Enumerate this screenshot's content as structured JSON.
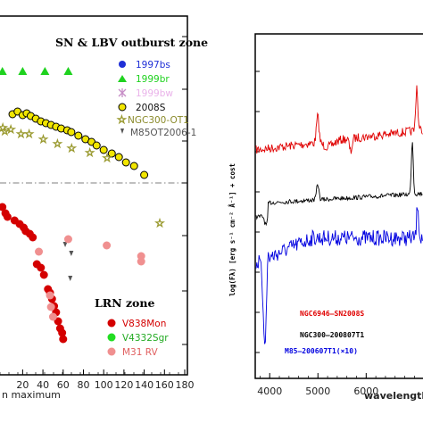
{
  "chart_data": [
    {
      "type": "scatter",
      "xlim": [
        -5,
        180
      ],
      "xticks": [
        20,
        40,
        60,
        80,
        100,
        120,
        140,
        160,
        180
      ],
      "xlabel": "n maximum",
      "grid": false,
      "zones": {
        "upper": "SN & LBV outburst zone",
        "lower": "LRN zone"
      },
      "legend_upper": [
        {
          "name": "1997bs",
          "color": "#1f2fd6",
          "marker": "circle"
        },
        {
          "name": "1999br",
          "color": "#1fd21f",
          "marker": "triangle"
        },
        {
          "name": "1999bw",
          "color": "#e9a8e8",
          "marker": "cross"
        },
        {
          "name": "2008S",
          "color": "#000000",
          "marker": "circle-yellow"
        },
        {
          "name": "NGC300-OT1",
          "color": "#8a8a2a",
          "marker": "star"
        },
        {
          "name": "M85OT2006-1",
          "color": "#555555",
          "marker": "arrow"
        }
      ],
      "legend_lower": [
        {
          "name": "V838Mon",
          "color": "#d40000",
          "marker": "circle"
        },
        {
          "name": "V4332Sgr",
          "color": "#22dd22",
          "marker": "circle"
        },
        {
          "name": "M31 RV",
          "color": "#f09090",
          "marker": "circle"
        }
      ],
      "series": [
        {
          "name": "1999br",
          "marker": "triangle",
          "color": "#1fd21f",
          "points": [
            [
              0,
              80
            ],
            [
              20,
              80
            ],
            [
              42,
              80
            ],
            [
              65,
              80
            ]
          ]
        },
        {
          "name": "2008S",
          "marker": "circle-yellow",
          "color": "#f2e600",
          "points": [
            [
              10,
              128
            ],
            [
              15,
              125
            ],
            [
              20,
              129
            ],
            [
              24,
              127
            ],
            [
              28,
              130
            ],
            [
              33,
              133
            ],
            [
              38,
              136
            ],
            [
              43,
              138
            ],
            [
              48,
              140
            ],
            [
              53,
              142
            ],
            [
              58,
              144
            ],
            [
              64,
              146
            ],
            [
              68,
              148
            ],
            [
              75,
              152
            ],
            [
              82,
              156
            ],
            [
              88,
              159
            ],
            [
              93,
              163
            ],
            [
              100,
              168
            ],
            [
              108,
              172
            ],
            [
              115,
              176
            ],
            [
              122,
              182
            ],
            [
              130,
              186
            ],
            [
              140,
              196
            ]
          ]
        },
        {
          "name": "NGC300-OT1",
          "marker": "star",
          "color": "#9a9a30",
          "points": [
            [
              0,
              143
            ],
            [
              2,
              147
            ],
            [
              8,
              145
            ],
            [
              18,
              150
            ],
            [
              26,
              150
            ],
            [
              40,
              156
            ],
            [
              54,
              161
            ],
            [
              68,
              166
            ],
            [
              86,
              171
            ],
            [
              103,
              177
            ],
            [
              155,
              250
            ]
          ]
        },
        {
          "name": "M85OT2006-1",
          "marker": "arrow",
          "color": "#555555",
          "points": [
            [
              62,
              274
            ],
            [
              68,
              284
            ],
            [
              67,
              312
            ]
          ]
        },
        {
          "name": "V838Mon",
          "marker": "circle",
          "color": "#d40000",
          "points": [
            [
              0,
              232
            ],
            [
              3,
              239
            ],
            [
              5,
              243
            ],
            [
              12,
              247
            ],
            [
              17,
              251
            ],
            [
              21,
              255
            ],
            [
              23,
              259
            ],
            [
              27,
              262
            ],
            [
              30,
              266
            ],
            [
              34,
              296
            ],
            [
              38,
              300
            ],
            [
              41,
              308
            ],
            [
              45,
              324
            ],
            [
              47,
              328
            ],
            [
              49,
              335
            ],
            [
              51,
              343
            ],
            [
              53,
              350
            ],
            [
              55,
              360
            ],
            [
              57,
              368
            ],
            [
              59,
              373
            ],
            [
              60,
              380
            ]
          ]
        },
        {
          "name": "M31 RV",
          "marker": "circle",
          "color": "#f09090",
          "points": [
            [
              36,
              282
            ],
            [
              47,
              331
            ],
            [
              48,
              344
            ],
            [
              50,
              355
            ],
            [
              65,
              268
            ],
            [
              103,
              275
            ],
            [
              137,
              287
            ],
            [
              137,
              293
            ]
          ]
        }
      ]
    },
    {
      "type": "line",
      "xlim": [
        3700,
        7400
      ],
      "xticks": [
        4000,
        5000,
        6000
      ],
      "xlabel": "wavelength (",
      "ylabel": "log(Fλ) [erg s⁻¹ cm⁻² Å⁻¹] + cost",
      "series": [
        {
          "name": "NGC6946–SN2008S",
          "color": "#e00000"
        },
        {
          "name": "NGC300–200807T1",
          "color": "#000000"
        },
        {
          "name": "M85–200607T1(×10)",
          "color": "#0000e0"
        }
      ]
    }
  ],
  "left_plot": {
    "legend_upper": {
      "e1997bs": "1997bs",
      "e1999br": "1999br",
      "e1999bw": "1999bw",
      "e2008S": "2008S",
      "eNGC300": "NGC300-OT1",
      "eM85": "M85OT2006-1"
    },
    "zone_upper": "SN & LBV outburst zone",
    "zone_lower": "LRN zone",
    "legend_lower": {
      "eV838": "V838Mon",
      "eV4332": "V4332Sgr",
      "eM31": "M31 RV"
    },
    "xlabel": "n maximum",
    "xticks": [
      "20",
      "40",
      "60",
      "80",
      "100",
      "120",
      "140",
      "160",
      "180"
    ]
  },
  "right_plot": {
    "ylabel": "log(Fλ) [erg s⁻¹ cm⁻² Å⁻¹] + cost",
    "xlabel": "wavelength (",
    "xticks": [
      "4000",
      "5000",
      "6000"
    ],
    "labels": {
      "red": "NGC6946–SN2008S",
      "black": "NGC300–200807T1",
      "blue": "M85–200607T1(×10)"
    }
  }
}
